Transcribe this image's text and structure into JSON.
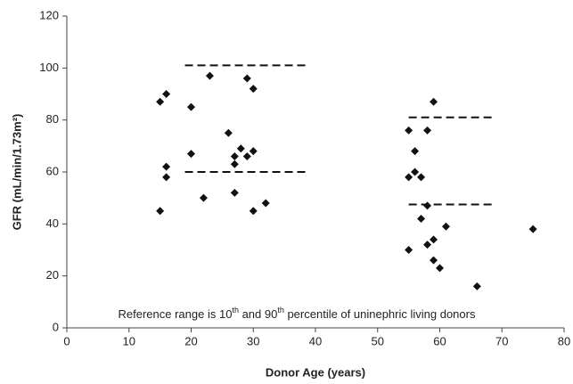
{
  "chart_data": {
    "type": "scatter",
    "x_label": "Donor Age (years)",
    "y_label": "GFR (mL/min/1.73m²)",
    "x": [
      15,
      16,
      16,
      16,
      15,
      20,
      20,
      22,
      23,
      26,
      27,
      27,
      27,
      28,
      29,
      30,
      29,
      30,
      30,
      32,
      55,
      55,
      55,
      56,
      56,
      57,
      57,
      58,
      58,
      58,
      59,
      59,
      59,
      60,
      61,
      66,
      75
    ],
    "values": [
      87,
      90,
      62,
      58,
      45,
      85,
      67,
      50,
      97,
      75,
      66,
      63,
      52,
      69,
      66,
      68,
      96,
      92,
      45,
      48,
      76,
      58,
      30,
      68,
      60,
      58,
      42,
      47,
      76,
      32,
      87,
      34,
      26,
      23,
      39,
      16,
      38
    ],
    "color": "#111111",
    "reference_lines": [
      {
        "x": [
          19,
          39
        ],
        "y": 101
      },
      {
        "x": [
          19,
          39
        ],
        "y": 60
      },
      {
        "x": [
          55,
          69
        ],
        "y": 81
      },
      {
        "x": [
          55,
          69
        ],
        "y": 47.5
      }
    ],
    "annotation": [
      {
        "text": "Reference range is 10",
        "sup": false
      },
      {
        "text": "th",
        "sup": true
      },
      {
        "text": " and 90",
        "sup": false
      },
      {
        "text": "th",
        "sup": true
      },
      {
        "text": " percentile of uninephric living donors",
        "sup": false
      }
    ],
    "xlim": [
      0,
      80
    ],
    "xticks": [
      0,
      10,
      20,
      30,
      40,
      50,
      60,
      70,
      80
    ],
    "ylim": [
      0,
      120
    ],
    "yticks": [
      0,
      20,
      40,
      60,
      80,
      100,
      120
    ]
  }
}
